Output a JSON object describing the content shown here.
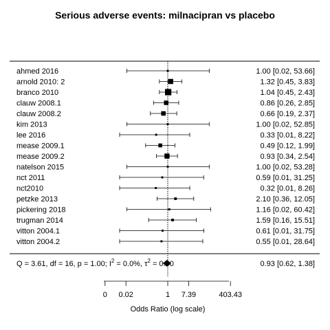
{
  "chart_data": {
    "type": "forest",
    "title": "Serious adverse events: milnacipran vs placebo",
    "xlabel": "Odds Ratio (log scale)",
    "x_scale": "log",
    "xlim": [
      0.005,
      403.43
    ],
    "ticks": [
      {
        "value": 0.00247875,
        "label": "0"
      },
      {
        "value": 0.0183156,
        "label": "0.02"
      },
      {
        "value": 1,
        "label": "1"
      },
      {
        "value": 7.389,
        "label": "7.39"
      },
      {
        "value": 403.43,
        "label": "403.43"
      }
    ],
    "reference_line": 1,
    "studies": [
      {
        "name": "ahmed 2016",
        "or": 1.0,
        "lo": 0.02,
        "hi": 53.66,
        "ci_text": "1.00 [0.02, 53.66]",
        "weight": 1
      },
      {
        "name": "arnold 2010: 2",
        "or": 1.32,
        "lo": 0.45,
        "hi": 3.83,
        "ci_text": "1.32 [0.45,  3.83]",
        "weight": 6
      },
      {
        "name": "branco 2010",
        "or": 1.04,
        "lo": 0.45,
        "hi": 2.43,
        "ci_text": "1.04 [0.45,  2.43]",
        "weight": 8
      },
      {
        "name": "clauw 2008.1",
        "or": 0.86,
        "lo": 0.26,
        "hi": 2.85,
        "ci_text": "0.86 [0.26,  2.85]",
        "weight": 5
      },
      {
        "name": "clauw 2008.2",
        "or": 0.66,
        "lo": 0.19,
        "hi": 2.37,
        "ci_text": "0.66 [0.19,  2.37]",
        "weight": 5
      },
      {
        "name": "kim 2013",
        "or": 1.0,
        "lo": 0.02,
        "hi": 52.85,
        "ci_text": "1.00 [0.02, 52.85]",
        "weight": 1
      },
      {
        "name": "lee 2016",
        "or": 0.33,
        "lo": 0.01,
        "hi": 8.22,
        "ci_text": "0.33 [0.01,  8.22]",
        "weight": 1
      },
      {
        "name": "mease 2009.1",
        "or": 0.49,
        "lo": 0.12,
        "hi": 1.99,
        "ci_text": "0.49 [0.12,  1.99]",
        "weight": 4
      },
      {
        "name": "mease 2009.2",
        "or": 0.93,
        "lo": 0.34,
        "hi": 2.54,
        "ci_text": "0.93 [0.34,  2.54]",
        "weight": 6
      },
      {
        "name": "natelson 2015",
        "or": 1.0,
        "lo": 0.02,
        "hi": 53.28,
        "ci_text": "1.00 [0.02, 53.28]",
        "weight": 1
      },
      {
        "name": "nct 2011",
        "or": 0.59,
        "lo": 0.01,
        "hi": 31.25,
        "ci_text": "0.59 [0.01, 31.25]",
        "weight": 1
      },
      {
        "name": "nct2010",
        "or": 0.32,
        "lo": 0.01,
        "hi": 8.26,
        "ci_text": "0.32 [0.01,  8.26]",
        "weight": 1
      },
      {
        "name": "petzke 2013",
        "or": 2.1,
        "lo": 0.36,
        "hi": 12.05,
        "ci_text": "2.10 [0.36, 12.05]",
        "weight": 2
      },
      {
        "name": "pickering 2018",
        "or": 1.16,
        "lo": 0.02,
        "hi": 60.42,
        "ci_text": "1.16 [0.02, 60.42]",
        "weight": 1
      },
      {
        "name": "trugman 2014",
        "or": 1.59,
        "lo": 0.16,
        "hi": 15.51,
        "ci_text": "1.59 [0.16, 15.51]",
        "weight": 2
      },
      {
        "name": "vitton 2004.1",
        "or": 0.61,
        "lo": 0.01,
        "hi": 31.75,
        "ci_text": "0.61 [0.01, 31.75]",
        "weight": 1
      },
      {
        "name": "vitton 2004.2",
        "or": 0.55,
        "lo": 0.01,
        "hi": 28.64,
        "ci_text": "0.55 [0.01, 28.64]",
        "weight": 1
      }
    ],
    "summary": {
      "label_pre": "Q = 3.61, df = 16, p = 1.00; I",
      "label_sup_i": "2",
      "label_mid": " = 0.0%, τ",
      "label_sup_t": "2",
      "label_post": " = 0.00",
      "or": 0.93,
      "lo": 0.62,
      "hi": 1.38,
      "ci_text": "0.93 [0.62,  1.38]"
    }
  }
}
